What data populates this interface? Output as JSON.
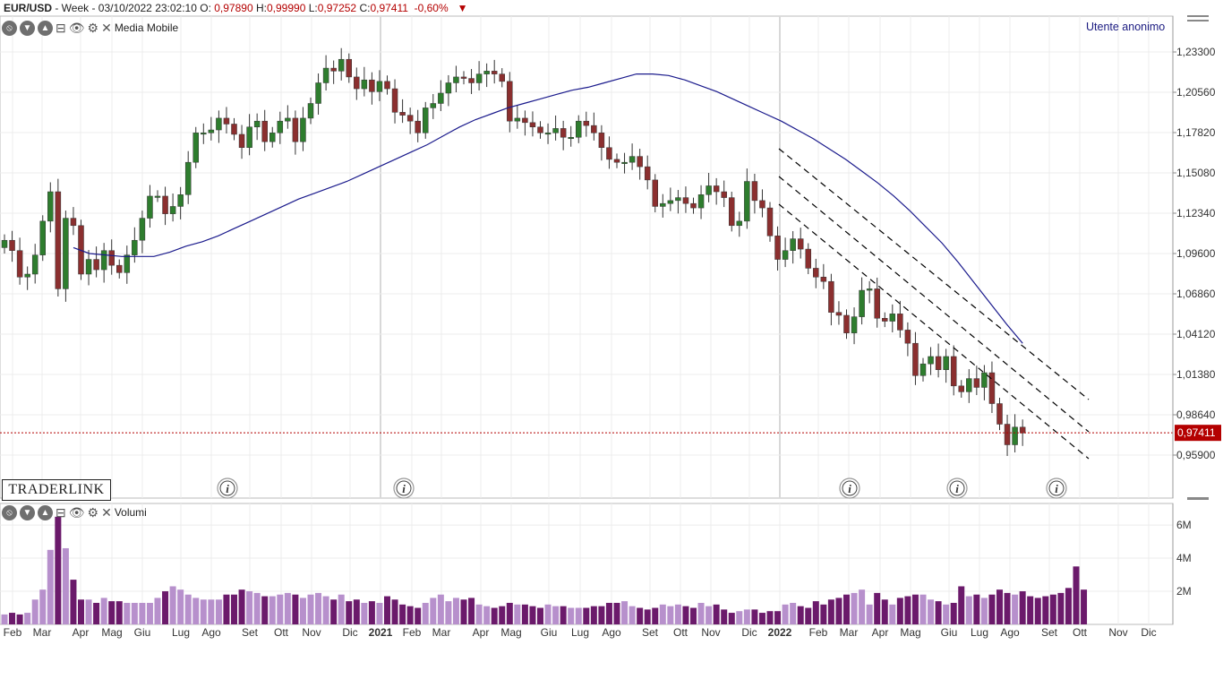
{
  "header": {
    "symbol": "EUR/USD",
    "meta": " - Week - 03/10/2022 23:02:10 O: ",
    "open": "0,97890",
    "high_label": " H:",
    "high": "0,99990",
    "low_label": " L:",
    "low": "0,97252",
    "close_label": " C:",
    "close": "0,97411",
    "change": "-0,60%",
    "dropdown_icon": "triangle-down-icon"
  },
  "price_panel": {
    "indicator_label": "Media Mobile",
    "user_label": "Utente anonimo",
    "logo": "TRADERLINK",
    "current_price_tag": "0,97411",
    "info_icons": [
      "info-icon",
      "info-icon",
      "info-icon",
      "info-icon",
      "info-icon"
    ]
  },
  "volume_panel": {
    "indicator_label": "Volumi"
  },
  "toolbar_icons": [
    "no-entry-icon",
    "chevron-down-icon",
    "chevron-up-icon",
    "minimize-icon",
    "eye-icon",
    "gear-icon",
    "close-icon"
  ],
  "colors": {
    "up_candle": "#2e7d2e",
    "down_candle": "#8b2f2f",
    "moving_average": "#1a1a8c",
    "volume_dark": "#6b1a6b",
    "volume_light": "#b790cc",
    "price_tag": "#b40000"
  },
  "chart_data": [
    {
      "type": "candlestick",
      "title": "EUR/USD - Week",
      "x_tick_labels": [
        "Feb",
        "Mar",
        "Apr",
        "Mag",
        "Giu",
        "Lug",
        "Ago",
        "Set",
        "Ott",
        "Nov",
        "Dic",
        "2021",
        "Feb",
        "Mar",
        "Apr",
        "Mag",
        "Giu",
        "Lug",
        "Ago",
        "Set",
        "Ott",
        "Nov",
        "Dic",
        "2022",
        "Feb",
        "Mar",
        "Apr",
        "Mag",
        "Giu",
        "Lug",
        "Ago",
        "Set",
        "Ott",
        "Nov",
        "Dic"
      ],
      "y_tick_labels": [
        "1,23300",
        "1,20560",
        "1,17820",
        "1,15080",
        "1,12340",
        "1,09600",
        "1,06860",
        "1,04120",
        "1,01380",
        "0,98640",
        "0,95900"
      ],
      "ylim": [
        0.945,
        1.245
      ],
      "grid": true,
      "series": [
        {
          "name": "EUR/USD",
          "kind": "ohlc",
          "closes": [
            1.105,
            1.098,
            1.08,
            1.082,
            1.095,
            1.118,
            1.138,
            1.072,
            1.12,
            1.115,
            1.082,
            1.092,
            1.085,
            1.098,
            1.088,
            1.083,
            1.095,
            1.105,
            1.12,
            1.135,
            1.135,
            1.123,
            1.128,
            1.136,
            1.158,
            1.178,
            1.178,
            1.18,
            1.188,
            1.184,
            1.177,
            1.168,
            1.182,
            1.186,
            1.172,
            1.178,
            1.186,
            1.188,
            1.172,
            1.188,
            1.198,
            1.212,
            1.222,
            1.22,
            1.228,
            1.216,
            1.208,
            1.214,
            1.206,
            1.213,
            1.208,
            1.192,
            1.19,
            1.186,
            1.178,
            1.195,
            1.198,
            1.205,
            1.212,
            1.216,
            1.215,
            1.212,
            1.218,
            1.22,
            1.218,
            1.213,
            1.186,
            1.188,
            1.185,
            1.182,
            1.178,
            1.178,
            1.181,
            1.175,
            1.175,
            1.186,
            1.183,
            1.178,
            1.168,
            1.16,
            1.158,
            1.158,
            1.162,
            1.155,
            1.146,
            1.128,
            1.13,
            1.132,
            1.134,
            1.13,
            1.127,
            1.136,
            1.142,
            1.138,
            1.134,
            1.115,
            1.118,
            1.145,
            1.132,
            1.127,
            1.108,
            1.092,
            1.098,
            1.106,
            1.099,
            1.086,
            1.08,
            1.077,
            1.056,
            1.054,
            1.042,
            1.053,
            1.071,
            1.072,
            1.052,
            1.05,
            1.055,
            1.044,
            1.035,
            1.013,
            1.021,
            1.026,
            1.017,
            1.026,
            1.006,
            1.002,
            1.011,
            1.005,
            1.015,
            0.994,
            0.98,
            0.966,
            0.978,
            0.974
          ]
        },
        {
          "name": "Media Mobile",
          "kind": "line",
          "values": [
            1.1,
            1.096,
            1.095,
            1.094,
            1.094,
            1.094,
            1.097,
            1.101,
            1.104,
            1.108,
            1.113,
            1.118,
            1.123,
            1.128,
            1.133,
            1.137,
            1.141,
            1.145,
            1.15,
            1.155,
            1.16,
            1.165,
            1.17,
            1.176,
            1.182,
            1.187,
            1.191,
            1.195,
            1.198,
            1.201,
            1.204,
            1.207,
            1.209,
            1.212,
            1.215,
            1.218,
            1.218,
            1.217,
            1.214,
            1.21,
            1.206,
            1.201,
            1.196,
            1.191,
            1.186,
            1.18,
            1.174,
            1.167,
            1.16,
            1.152,
            1.144,
            1.135,
            1.125,
            1.114,
            1.103,
            1.09,
            1.076,
            1.062,
            1.048,
            1.035
          ]
        }
      ]
    },
    {
      "type": "bar",
      "title": "Volumi",
      "y_tick_labels": [
        "6M",
        "4M",
        "2M"
      ],
      "ylim": [
        0,
        7000000
      ],
      "values": [
        0.6,
        0.7,
        0.6,
        0.7,
        1.5,
        2.1,
        4.5,
        6.5,
        4.6,
        2.7,
        1.5,
        1.5,
        1.3,
        1.6,
        1.4,
        1.4,
        1.3,
        1.3,
        1.3,
        1.3,
        1.6,
        2.0,
        2.3,
        2.1,
        1.8,
        1.6,
        1.5,
        1.5,
        1.5,
        1.8,
        1.8,
        2.1,
        2.0,
        1.9,
        1.7,
        1.7,
        1.8,
        1.9,
        1.8,
        1.6,
        1.8,
        1.9,
        1.7,
        1.5,
        1.8,
        1.4,
        1.5,
        1.3,
        1.4,
        1.3,
        1.7,
        1.5,
        1.2,
        1.1,
        1.0,
        1.3,
        1.6,
        1.8,
        1.4,
        1.6,
        1.5,
        1.6,
        1.2,
        1.1,
        1.0,
        1.1,
        1.3,
        1.2,
        1.2,
        1.1,
        1.0,
        1.2,
        1.1,
        1.1,
        1.0,
        1.0,
        1.0,
        1.1,
        1.1,
        1.3,
        1.3,
        1.4,
        1.1,
        1.0,
        0.9,
        1.0,
        1.2,
        1.1,
        1.2,
        1.1,
        1.0,
        1.3,
        1.1,
        1.2,
        0.9,
        0.7,
        0.8,
        0.9,
        0.9,
        0.7,
        0.8,
        0.8,
        1.2,
        1.3,
        1.1,
        1.0,
        1.4,
        1.2,
        1.5,
        1.6,
        1.8,
        1.9,
        2.1,
        1.2,
        1.9,
        1.5,
        1.2,
        1.6,
        1.7,
        1.8,
        1.8,
        1.5,
        1.4,
        1.2,
        1.3,
        2.3,
        1.7,
        1.8,
        1.6,
        1.8,
        2.1,
        1.9,
        1.8,
        2.0,
        1.7,
        1.6,
        1.7,
        1.8,
        1.9,
        2.2,
        3.5,
        2.1
      ]
    }
  ]
}
